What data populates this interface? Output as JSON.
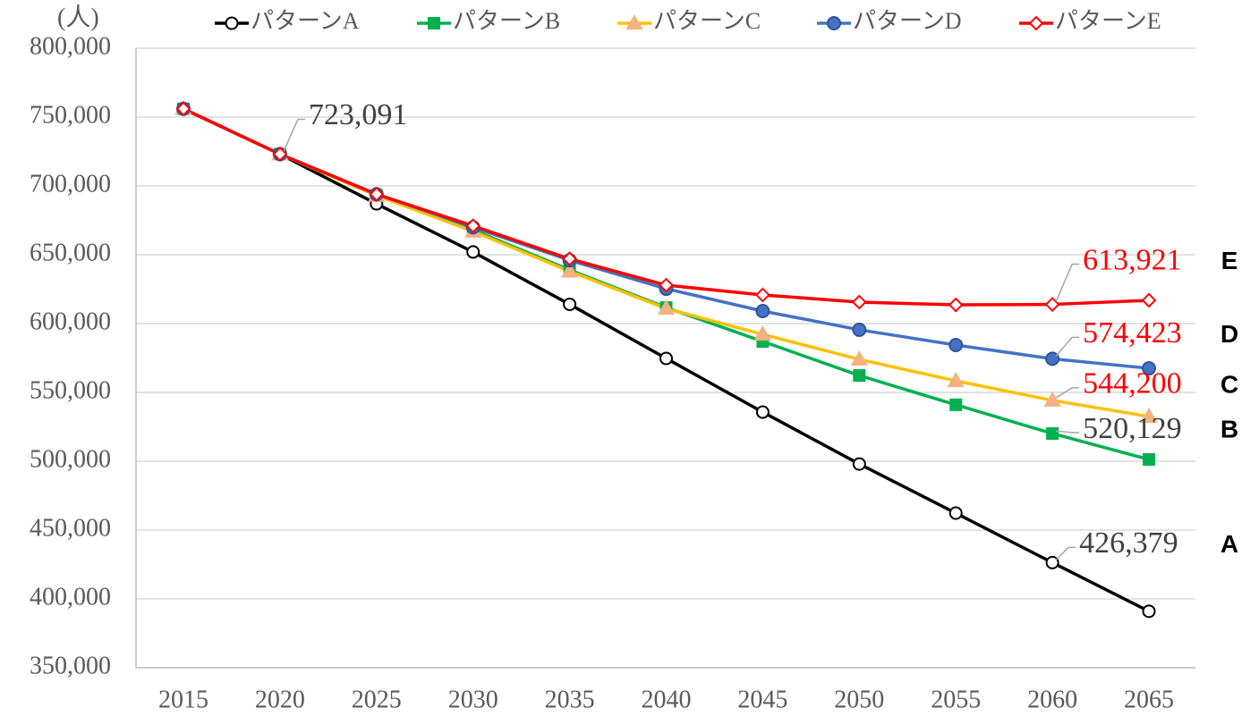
{
  "chart_data": {
    "type": "line",
    "y_label": "(人)",
    "categories": [
      "2015",
      "2020",
      "2025",
      "2030",
      "2035",
      "2040",
      "2045",
      "2050",
      "2055",
      "2060",
      "2065"
    ],
    "ylim": [
      350000,
      800000
    ],
    "yticks": [
      {
        "value": 350000,
        "label": "350,000"
      },
      {
        "value": 400000,
        "label": "400,000"
      },
      {
        "value": 450000,
        "label": "450,000"
      },
      {
        "value": 500000,
        "label": "500,000"
      },
      {
        "value": 550000,
        "label": "550,000"
      },
      {
        "value": 600000,
        "label": "600,000"
      },
      {
        "value": 650000,
        "label": "650,000"
      },
      {
        "value": 700000,
        "label": "700,000"
      },
      {
        "value": 750000,
        "label": "750,000"
      },
      {
        "value": 800000,
        "label": "800,000"
      }
    ],
    "grid": true,
    "legend": "top",
    "series": [
      {
        "name": "パターンA",
        "color": "#000000",
        "marker": "circle-open",
        "end_label": "A",
        "label_color": "#404040",
        "values": [
          756000,
          723091,
          687000,
          652000,
          614000,
          574700,
          535700,
          498000,
          462300,
          426379,
          391000
        ],
        "value_labels": [
          null,
          "723,091",
          null,
          null,
          null,
          null,
          null,
          null,
          null,
          "426,379",
          null
        ]
      },
      {
        "name": "パターンB",
        "color": "#00b050",
        "marker": "square",
        "end_label": "B",
        "label_color": "#404040",
        "values": [
          756000,
          723091,
          693000,
          668000,
          639000,
          611700,
          587000,
          562300,
          541000,
          520129,
          501300
        ],
        "value_labels": [
          null,
          null,
          null,
          null,
          null,
          null,
          null,
          null,
          null,
          "520,129",
          null
        ]
      },
      {
        "name": "パターンC",
        "color": "#ffc000",
        "marker": "triangle",
        "end_label": "C",
        "label_color": "#ff0000",
        "values": [
          756000,
          723091,
          693000,
          667000,
          638000,
          611000,
          592200,
          574000,
          558400,
          544200,
          532500
        ],
        "value_labels": [
          null,
          null,
          null,
          null,
          null,
          null,
          null,
          null,
          null,
          "544,200",
          null
        ]
      },
      {
        "name": "パターンD",
        "color": "#4472c4",
        "marker": "circle",
        "end_label": "D",
        "label_color": "#ff0000",
        "values": [
          756000,
          723091,
          694000,
          670000,
          646000,
          625300,
          609100,
          595500,
          584400,
          574423,
          567500
        ],
        "value_labels": [
          null,
          null,
          null,
          null,
          null,
          null,
          null,
          null,
          null,
          "574,423",
          null
        ]
      },
      {
        "name": "パターンE",
        "color": "#ff0000",
        "marker": "diamond-open",
        "end_label": "E",
        "label_color": "#ff0000",
        "values": [
          756000,
          723091,
          694000,
          671000,
          647000,
          627900,
          620800,
          615600,
          613600,
          613921,
          616900
        ],
        "value_labels": [
          null,
          null,
          null,
          null,
          null,
          null,
          null,
          null,
          null,
          "613,921",
          null
        ]
      }
    ]
  }
}
